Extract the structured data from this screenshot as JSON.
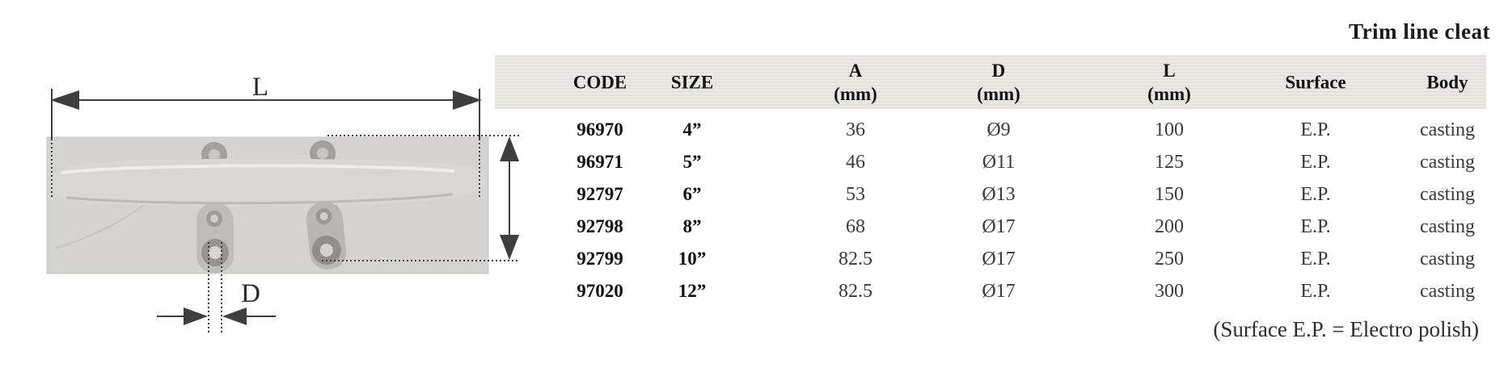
{
  "page": {
    "title": "Trim line cleat",
    "footnote": "(Surface E.P. = Electro polish)"
  },
  "diagram": {
    "length_label": "L",
    "diameter_label": "D"
  },
  "table": {
    "columns": [
      {
        "key": "code",
        "label": "CODE",
        "sub": ""
      },
      {
        "key": "size",
        "label": "SIZE",
        "sub": ""
      },
      {
        "key": "a",
        "label": "A",
        "sub": "(mm)"
      },
      {
        "key": "d",
        "label": "D",
        "sub": "(mm)"
      },
      {
        "key": "l",
        "label": "L",
        "sub": "(mm)"
      },
      {
        "key": "surface",
        "label": "Surface",
        "sub": ""
      },
      {
        "key": "body",
        "label": "Body",
        "sub": ""
      }
    ],
    "rows": [
      {
        "code": "96970",
        "size": "4”",
        "a": "36",
        "d": "Ø9",
        "l": "100",
        "surface": "E.P.",
        "body": "casting"
      },
      {
        "code": "96971",
        "size": "5”",
        "a": "46",
        "d": "Ø11",
        "l": "125",
        "surface": "E.P.",
        "body": "casting"
      },
      {
        "code": "92797",
        "size": "6”",
        "a": "53",
        "d": "Ø13",
        "l": "150",
        "surface": "E.P.",
        "body": "casting"
      },
      {
        "code": "92798",
        "size": "8”",
        "a": "68",
        "d": "Ø17",
        "l": "200",
        "surface": "E.P.",
        "body": "casting"
      },
      {
        "code": "92799",
        "size": "10”",
        "a": "82.5",
        "d": "Ø17",
        "l": "250",
        "surface": "E.P.",
        "body": "casting"
      },
      {
        "code": "97020",
        "size": "12”",
        "a": "82.5",
        "d": "Ø17",
        "l": "300",
        "surface": "E.P.",
        "body": "casting"
      }
    ]
  }
}
